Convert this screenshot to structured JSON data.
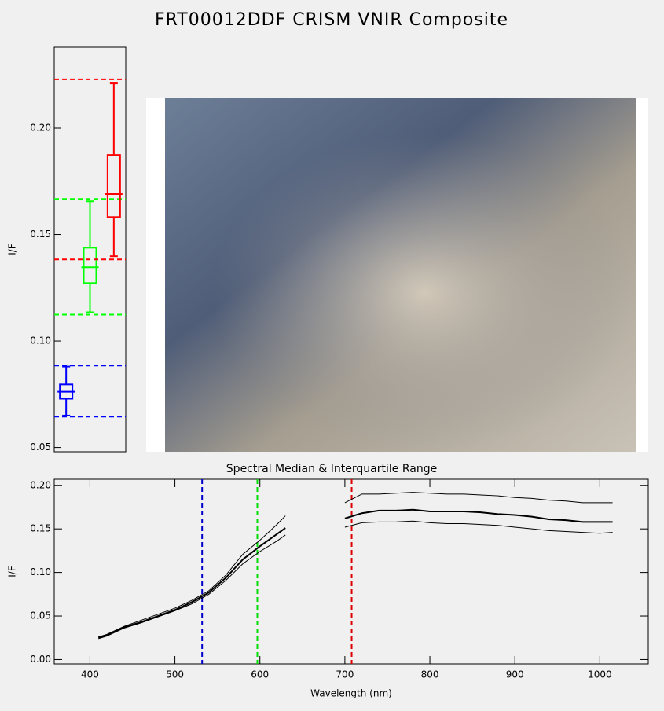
{
  "title": "FRT00012DDF CRISM VNIR Composite",
  "chart_data": [
    {
      "type": "box",
      "ylabel": "I/F",
      "ylim": [
        0.048,
        0.238
      ],
      "yticks": [
        0.05,
        {
          "value": 0.1,
          "label": "0.10"
        },
        0.15,
        {
          "value": 0.2,
          "label": "0.20"
        }
      ],
      "series": [
        {
          "color": "#0000ff",
          "whislo": 0.065,
          "q1": 0.0729,
          "med": 0.0762,
          "q3": 0.0796,
          "whishi": 0.088,
          "lines": [
            0.0645,
            0.0885
          ]
        },
        {
          "color": "#00ff00",
          "whislo": 0.1135,
          "q1": 0.1272,
          "med": 0.1346,
          "q3": 0.1438,
          "whishi": 0.1656,
          "lines": [
            0.1124,
            0.1667
          ]
        },
        {
          "color": "#ff0000",
          "whislo": 0.1398,
          "q1": 0.1582,
          "med": 0.169,
          "q3": 0.1874,
          "whishi": 0.221,
          "lines": [
            0.1383,
            0.2229
          ]
        }
      ]
    },
    {
      "type": "line",
      "title": "Spectral Median & Interquartile Range",
      "xlabel": "Wavelength (nm)",
      "ylabel": "I/F",
      "xlim": [
        358,
        1057
      ],
      "ylim": [
        -0.005,
        0.207
      ],
      "xticks": [
        400,
        500,
        600,
        700,
        800,
        900,
        1000
      ],
      "yticks": [
        {
          "value": 0,
          "label": "0.00"
        },
        0.05,
        {
          "value": 0.1,
          "label": "0.10"
        },
        0.15,
        {
          "value": 0.2,
          "label": "0.20"
        }
      ],
      "x": [
        410,
        420,
        440,
        460,
        480,
        500,
        520,
        540,
        560,
        580,
        600,
        620,
        630,
        660,
        700,
        720,
        740,
        760,
        780,
        800,
        820,
        840,
        860,
        880,
        900,
        920,
        940,
        960,
        980,
        1000,
        1015
      ],
      "series": [
        {
          "color": "#000000",
          "width": 2,
          "values": [
            0.025,
            0.028,
            0.037,
            0.043,
            0.05,
            0.057,
            0.066,
            0.077,
            0.094,
            0.115,
            0.13,
            0.144,
            0.151,
            null,
            0.162,
            0.168,
            0.171,
            0.171,
            0.172,
            0.17,
            0.17,
            0.17,
            0.169,
            0.167,
            0.166,
            0.164,
            0.161,
            0.16,
            0.158,
            0.158,
            0.158
          ]
        },
        {
          "color": "#000000",
          "width": 1,
          "values": [
            0.026,
            0.029,
            0.038,
            0.045,
            0.052,
            0.059,
            0.068,
            0.079,
            0.097,
            0.121,
            0.137,
            0.155,
            0.165,
            null,
            0.18,
            0.19,
            0.19,
            0.191,
            0.192,
            0.191,
            0.19,
            0.19,
            0.189,
            0.188,
            0.186,
            0.185,
            0.183,
            0.182,
            0.18,
            0.18,
            0.18
          ]
        },
        {
          "color": "#000000",
          "width": 1,
          "values": [
            0.024,
            0.027,
            0.036,
            0.042,
            0.049,
            0.056,
            0.064,
            0.075,
            0.091,
            0.11,
            0.124,
            0.136,
            0.143,
            null,
            0.152,
            0.157,
            0.158,
            0.158,
            0.159,
            0.157,
            0.156,
            0.156,
            0.155,
            0.154,
            0.152,
            0.15,
            0.148,
            0.147,
            0.146,
            0.145,
            0.146
          ]
        }
      ],
      "vlines": [
        {
          "x": 532,
          "color": "#0000cc"
        },
        {
          "x": 597,
          "color": "#00dd00"
        },
        {
          "x": 708,
          "color": "#dd0000"
        }
      ]
    }
  ]
}
